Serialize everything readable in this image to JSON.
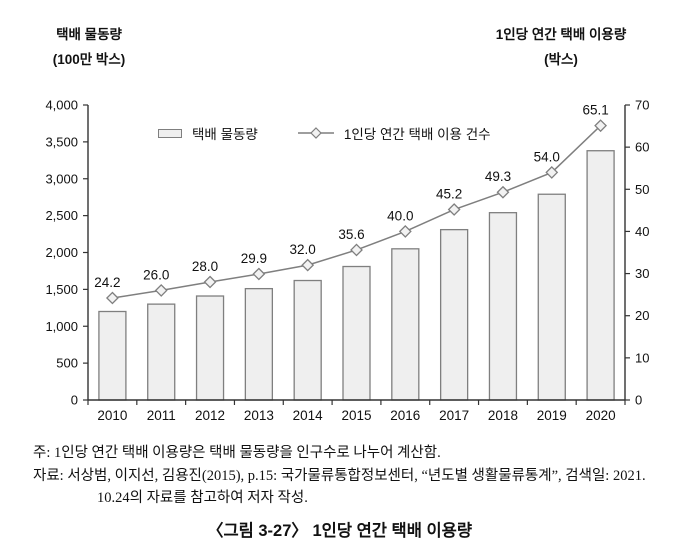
{
  "left_axis_title": {
    "line1": "택배 물동량",
    "line2": "(100만 박스)"
  },
  "right_axis_title": {
    "line1": "1인당 연간 택배 이용량",
    "line2": "(박스)"
  },
  "legend": {
    "bar_label": "택배 물동량",
    "line_label": "1인당 연간 택배 이용 건수"
  },
  "chart_data": {
    "type": "bar+line",
    "categories": [
      "2010",
      "2011",
      "2012",
      "2013",
      "2014",
      "2015",
      "2016",
      "2017",
      "2018",
      "2019",
      "2020"
    ],
    "series": [
      {
        "name": "택배 물동량",
        "type": "bar",
        "axis": "left",
        "values": [
          1200,
          1300,
          1410,
          1510,
          1620,
          1810,
          2050,
          2310,
          2540,
          2790,
          3380
        ]
      },
      {
        "name": "1인당 연간 택배 이용 건수",
        "type": "line",
        "axis": "right",
        "values": [
          24.2,
          26.0,
          28.0,
          29.9,
          32.0,
          35.6,
          40.0,
          45.2,
          49.3,
          54.0,
          65.1
        ],
        "labels": [
          "24.2",
          "26.0",
          "28.0",
          "29.9",
          "32.0",
          "35.6",
          "40.0",
          "45.2",
          "49.3",
          "54.0",
          "65.1"
        ]
      }
    ],
    "left_axis": {
      "min": 0,
      "max": 4000,
      "step": 500,
      "tick_labels": [
        "0",
        "500",
        "1,000",
        "1,500",
        "2,000",
        "2,500",
        "3,000",
        "3,500",
        "4,000"
      ]
    },
    "right_axis": {
      "min": 0,
      "max": 70,
      "step": 10,
      "tick_labels": [
        "0",
        "10",
        "20",
        "30",
        "40",
        "50",
        "60",
        "70"
      ]
    },
    "grid": false,
    "legend_position": "top-inside",
    "title": ""
  },
  "colors": {
    "bar_fill": "#efefef",
    "chart_stroke": "#7f7f7f",
    "axis_color": "#333333",
    "text_color": "#111111"
  },
  "footnotes": {
    "note": "주: 1인당 연간 택배 이용량은 택배 물동량을 인구수로 나누어 계산함.",
    "source_line1": "자료: 서상범, 이지선, 김용진(2015), p.15: 국가물류통합정보센터, “년도별 생활물류통계”, 검색일: 2021.",
    "source_line2": "10.24의 자료를 참고하여 저자 작성."
  },
  "caption": "〈그림 3-27〉 1인당 연간 택배 이용량"
}
